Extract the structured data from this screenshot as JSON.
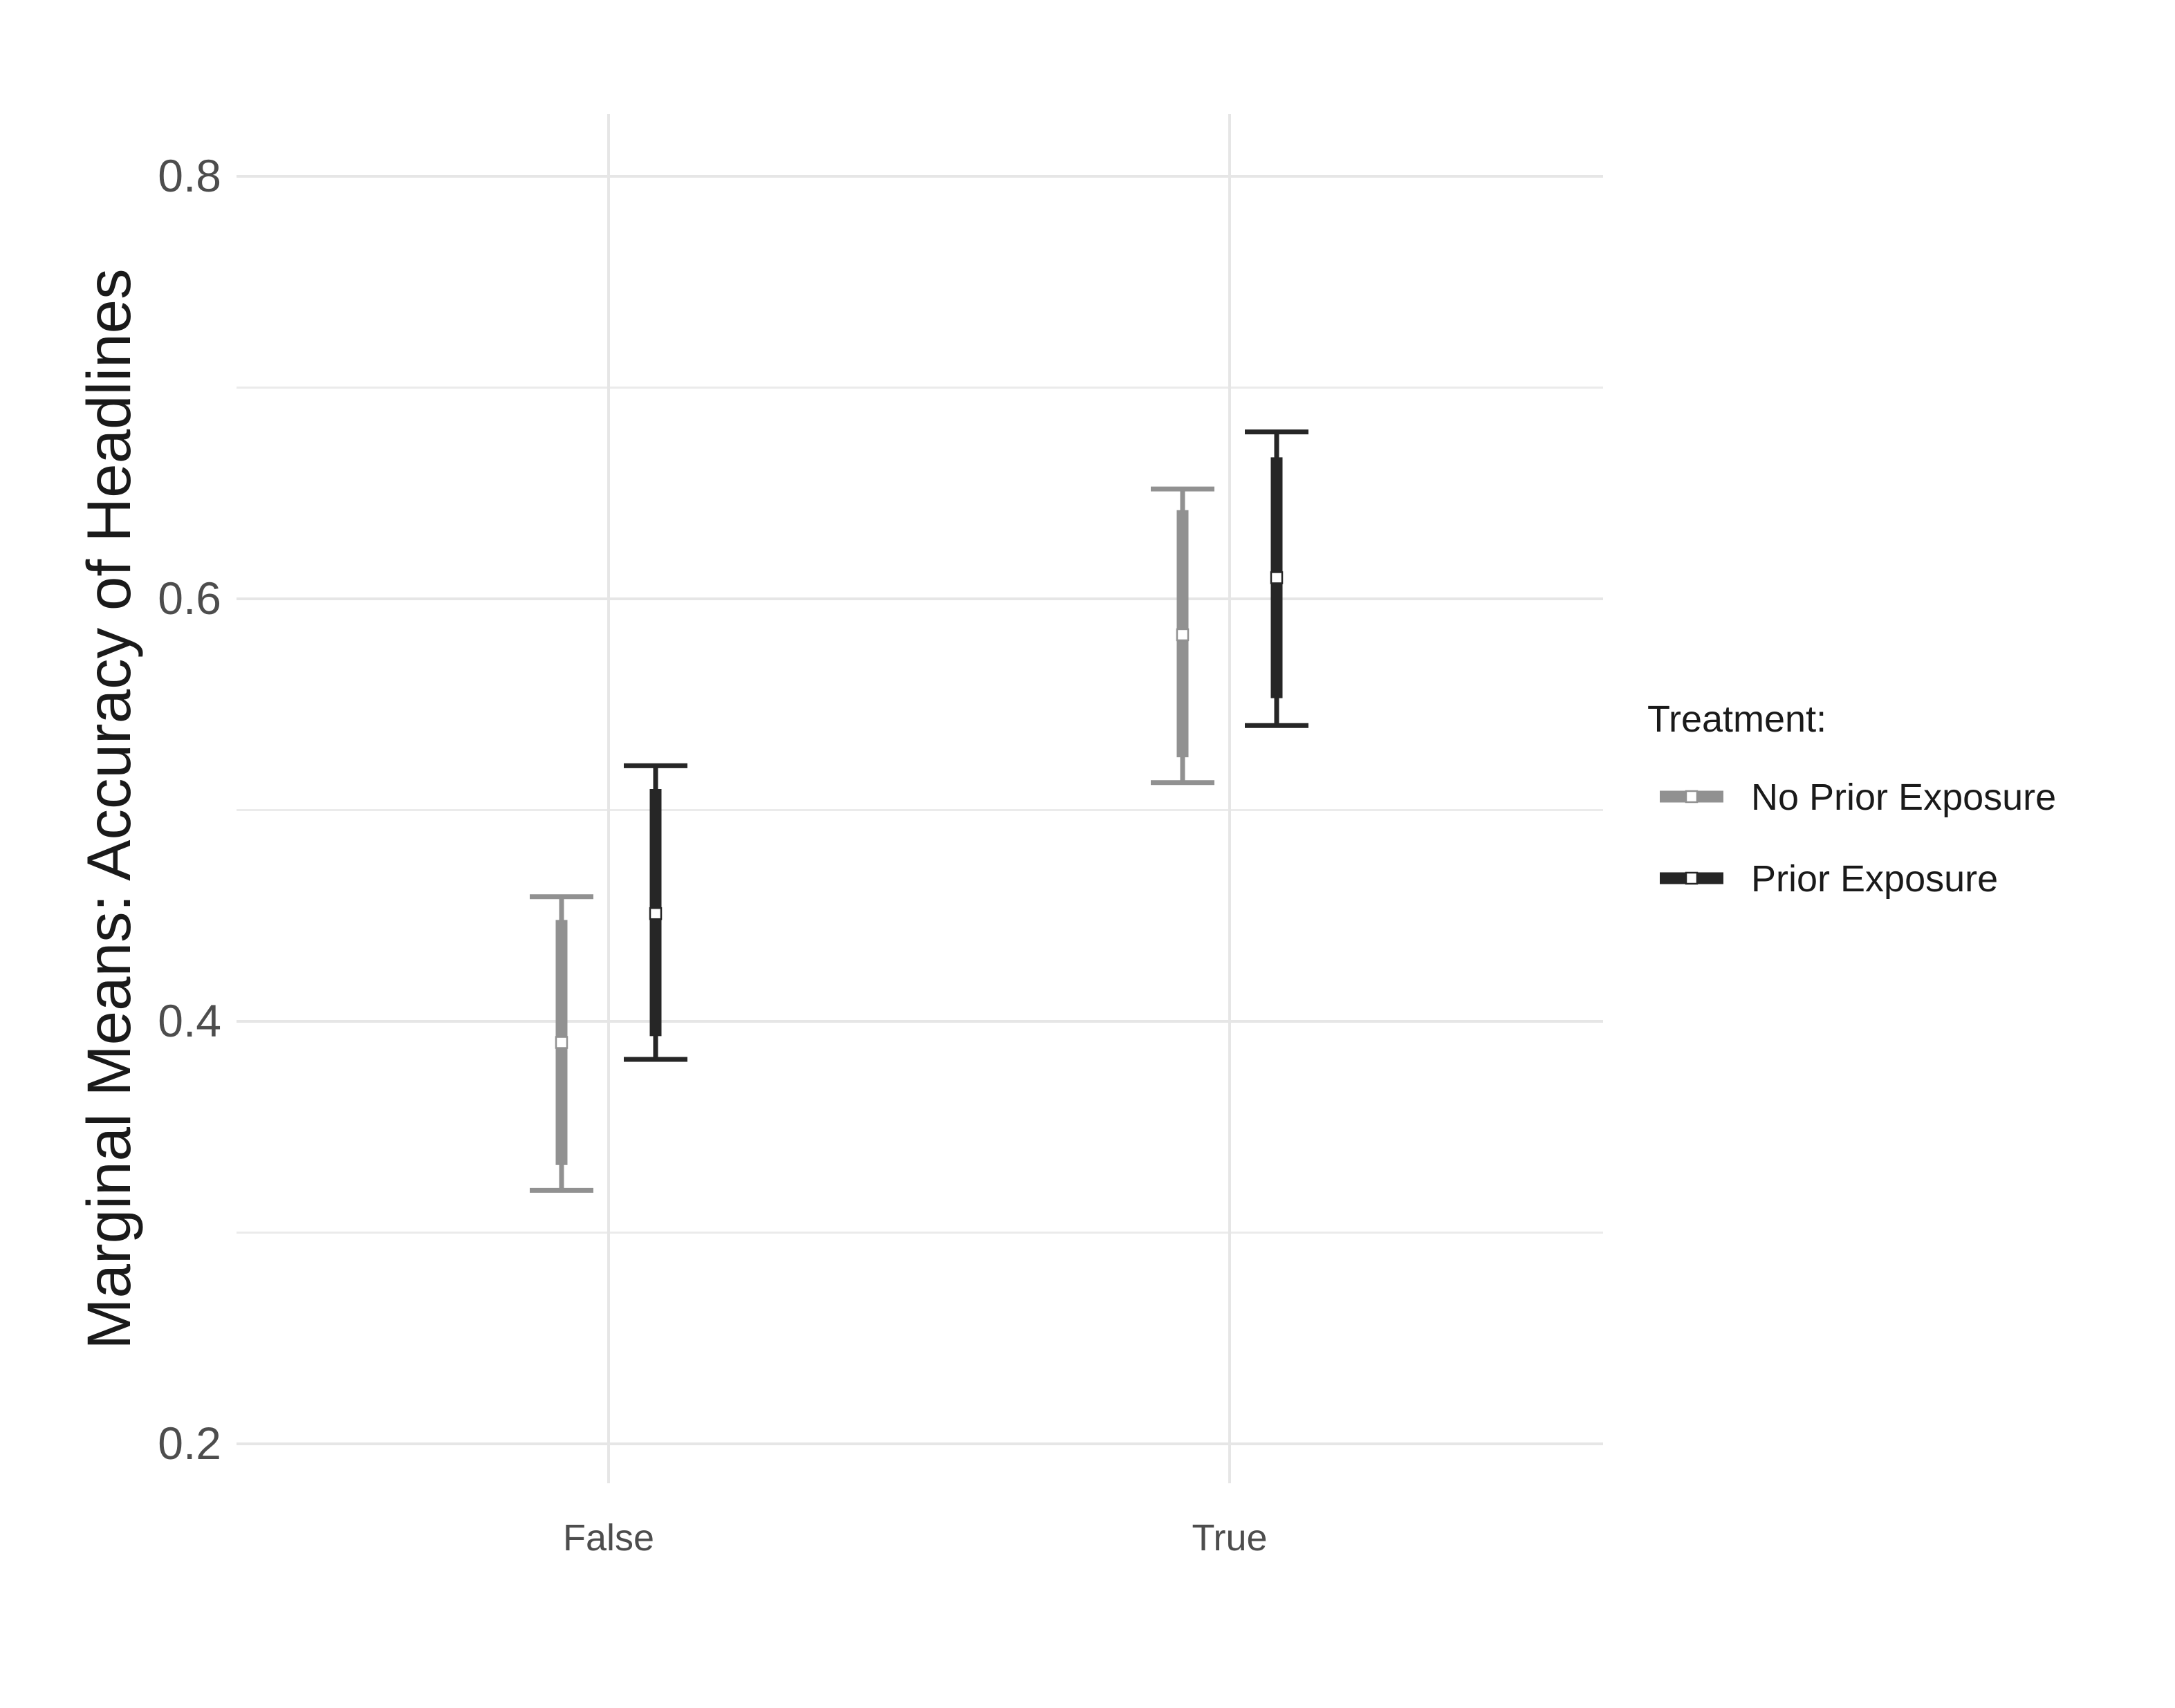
{
  "chart_data": {
    "type": "errorbar",
    "title": "",
    "xlabel": "",
    "ylabel": "Marginal Means: Accuracy of Headlines",
    "ylim": [
      0.17,
      0.83
    ],
    "yticks": [
      0.2,
      0.4,
      0.6,
      0.8
    ],
    "ytick_labels": [
      "0.2",
      "0.4",
      "0.6",
      "0.8"
    ],
    "categories": [
      "False",
      "True"
    ],
    "grid": true,
    "legend": {
      "title": "Treatment:",
      "position": "right"
    },
    "series": [
      {
        "name": "No Prior Exposure",
        "color": "#919191",
        "values": [
          0.39,
          0.583
        ],
        "inner_ci": [
          [
            0.332,
            0.448
          ],
          [
            0.525,
            0.642
          ]
        ],
        "outer_ci": [
          [
            0.32,
            0.459
          ],
          [
            0.513,
            0.652
          ]
        ]
      },
      {
        "name": "Prior Exposure",
        "color": "#262626",
        "values": [
          0.451,
          0.61
        ],
        "inner_ci": [
          [
            0.393,
            0.51
          ],
          [
            0.553,
            0.667
          ]
        ],
        "outer_ci": [
          [
            0.382,
            0.521
          ],
          [
            0.54,
            0.679
          ]
        ]
      }
    ]
  }
}
